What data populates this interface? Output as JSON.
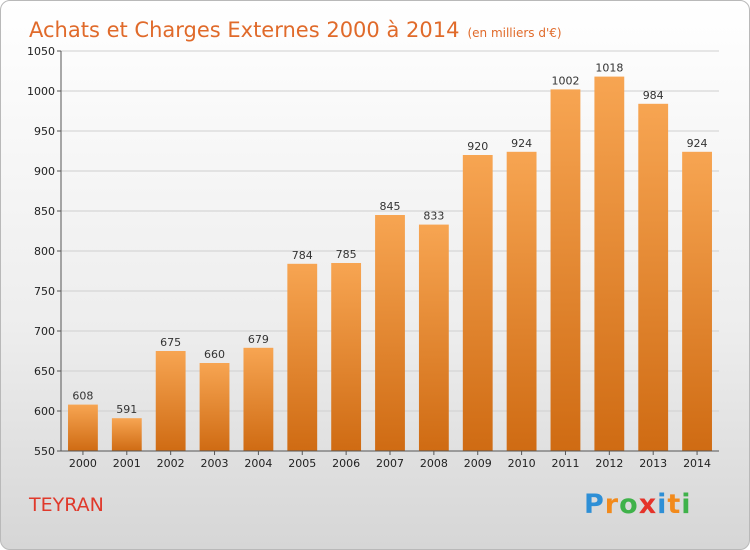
{
  "title": "Achats et Charges Externes 2000 à 2014",
  "title_unit": "(en milliers d'€)",
  "commune": "TEYRAN",
  "logo": {
    "letters": [
      "P",
      "r",
      "o",
      "x",
      "i",
      "t",
      "i"
    ],
    "colors": [
      "#2e8fd6",
      "#f28a1b",
      "#3fb24a",
      "#e5332a",
      "#2e8fd6",
      "#f28a1b",
      "#3fb24a"
    ]
  },
  "colors": {
    "bar_top": "#f7a552",
    "bar_bottom": "#cf6b13",
    "title": "#e06a2a",
    "commune": "#e0392b"
  },
  "chart_data": {
    "type": "bar",
    "categories": [
      "2000",
      "2001",
      "2002",
      "2003",
      "2004",
      "2005",
      "2006",
      "2007",
      "2008",
      "2009",
      "2010",
      "2011",
      "2012",
      "2013",
      "2014"
    ],
    "values": [
      608,
      591,
      675,
      660,
      679,
      784,
      785,
      845,
      833,
      920,
      924,
      1002,
      1018,
      984,
      924
    ],
    "ylim": [
      550,
      1050
    ],
    "yticks": [
      550,
      600,
      650,
      700,
      750,
      800,
      850,
      900,
      950,
      1000,
      1050
    ],
    "grid": true,
    "data_labels": true
  }
}
